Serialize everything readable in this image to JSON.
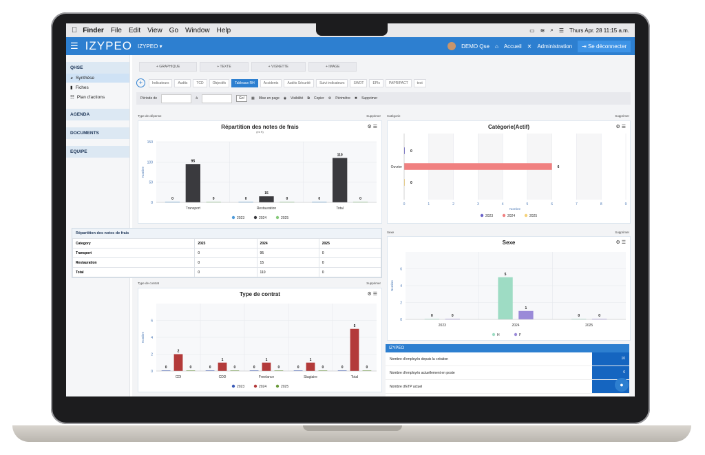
{
  "mac": {
    "apple": "",
    "app": "Finder",
    "menus": [
      "File",
      "Edit",
      "View",
      "Go",
      "Window",
      "Help"
    ],
    "clock": "Thurs Apr. 28 11:15 a.m."
  },
  "topnav": {
    "brand": "IZYPEO",
    "workspace": "IZYPEO ▾",
    "user": "DEMO Qse",
    "home": "Accueil",
    "admin": "Administration",
    "logout": "Se déconnecter"
  },
  "sidebar": {
    "sections": [
      {
        "title": "QHSE",
        "items": [
          {
            "icon": "synthese-icon",
            "label": "Synthèse",
            "active": true
          },
          {
            "icon": "file-icon",
            "label": "Fiches"
          },
          {
            "icon": "list-icon",
            "label": "Plan d'actions"
          }
        ]
      },
      {
        "title": "AGENDA",
        "items": []
      },
      {
        "title": "DOCUMENTS",
        "items": []
      },
      {
        "title": "EQUIPE",
        "items": []
      }
    ]
  },
  "add_tabs": [
    "+ GRAPHIQUE",
    "+ TEXTE",
    "+ VIGNETTE",
    "+ IMAGE"
  ],
  "dash_tabs": [
    "Indicateurs",
    "Audits",
    "TCD",
    "Objectifs",
    "Tableaux RH",
    "Accidents",
    "Audits Sécurité",
    "Suivi indicateurs",
    "SWOT",
    "EPIs",
    "PAPRIPACT",
    "test"
  ],
  "active_tab": "Tableaux RH",
  "filter": {
    "periode": "Période de",
    "a": "à",
    "go": "Go!",
    "mise": "Mise en page",
    "visibilite": "Visibilité",
    "copier": "Copier",
    "perimetre": "Périmètre",
    "supprimer": "Supprimer"
  },
  "panels": {
    "p1": {
      "label": "Type de dépense",
      "del": "Supprimer",
      "title": "Répartition des notes de frais",
      "subtitle": "(en €)"
    },
    "p2": {
      "label": "Catégorie",
      "del": "Supprimer",
      "title": "Catégorie(Actif)"
    },
    "p3": {
      "label": "Type de contrat",
      "del": "Supprimer",
      "title": "Type de contrat"
    },
    "p4": {
      "label": "Sexe",
      "del": "Supprimer",
      "title": "Sexe"
    }
  },
  "table": {
    "title": "Répartition des notes de frais",
    "header": [
      "Category",
      "2023",
      "2024",
      "2025"
    ],
    "rows": [
      [
        "Transport",
        "0",
        "95",
        "0"
      ],
      [
        "Restauration",
        "0",
        "15",
        "0"
      ],
      [
        "Total",
        "0",
        "110",
        "0"
      ]
    ]
  },
  "izypeo": {
    "title": "IZYPEO",
    "rows": [
      {
        "label": "Nombre d'employés depuis la création",
        "value": "10"
      },
      {
        "label": "Nombre d'employés actuellement en poste",
        "value": "6"
      },
      {
        "label": "Nombre d'ETP actuel",
        "value": ""
      }
    ]
  },
  "chart_data": [
    {
      "type": "bar",
      "title": "Répartition des notes de frais",
      "subtitle": "(en €)",
      "ylabel": "Nombre",
      "ylim": [
        0,
        150
      ],
      "yticks": [
        0,
        50,
        100,
        150
      ],
      "categories": [
        "Transport",
        "Restauration",
        "Total"
      ],
      "series": [
        {
          "name": "2023",
          "values": [
            0,
            0,
            0
          ],
          "color": "#4f9bd9"
        },
        {
          "name": "2024",
          "values": [
            95,
            15,
            110
          ],
          "color": "#3a3a3e"
        },
        {
          "name": "2025",
          "values": [
            0,
            0,
            0
          ],
          "color": "#86c97a"
        }
      ]
    },
    {
      "type": "bar",
      "orientation": "horizontal",
      "title": "Catégorie(Actif)",
      "xlabel": "Nombre",
      "xlim": [
        0,
        9
      ],
      "xticks": [
        0,
        1,
        2,
        3,
        4,
        5,
        6,
        7,
        8,
        9
      ],
      "categories": [
        "Ouvrier"
      ],
      "series": [
        {
          "name": "2023",
          "values": [
            0
          ],
          "color": "#6a63c9"
        },
        {
          "name": "2024",
          "values": [
            6
          ],
          "color": "#f08080"
        },
        {
          "name": "2025",
          "values": [
            0
          ],
          "color": "#f5d27a"
        }
      ]
    },
    {
      "type": "bar",
      "title": "Type de contrat",
      "ylabel": "Nombre",
      "ylim": [
        0,
        8
      ],
      "yticks": [
        0,
        2,
        4,
        6
      ],
      "categories": [
        "CDI",
        "CDD",
        "Freelance",
        "Stagiaire",
        "Total"
      ],
      "series": [
        {
          "name": "2023",
          "values": [
            0,
            0,
            0,
            0,
            0
          ],
          "color": "#3b5bb8"
        },
        {
          "name": "2024",
          "values": [
            2,
            1,
            1,
            1,
            5
          ],
          "color": "#b33a3a"
        },
        {
          "name": "2025",
          "values": [
            0,
            0,
            0,
            0,
            0
          ],
          "color": "#6a9a3a"
        }
      ]
    },
    {
      "type": "bar",
      "title": "Sexe",
      "ylabel": "Nombre",
      "ylim": [
        0,
        8
      ],
      "yticks": [
        0,
        2,
        4,
        6
      ],
      "categories": [
        "2023",
        "2024",
        "2025"
      ],
      "series": [
        {
          "name": "H",
          "values": [
            0,
            5,
            0
          ],
          "color": "#9edcc4"
        },
        {
          "name": "F",
          "values": [
            0,
            1,
            0
          ],
          "color": "#9a8ad8"
        }
      ]
    }
  ]
}
